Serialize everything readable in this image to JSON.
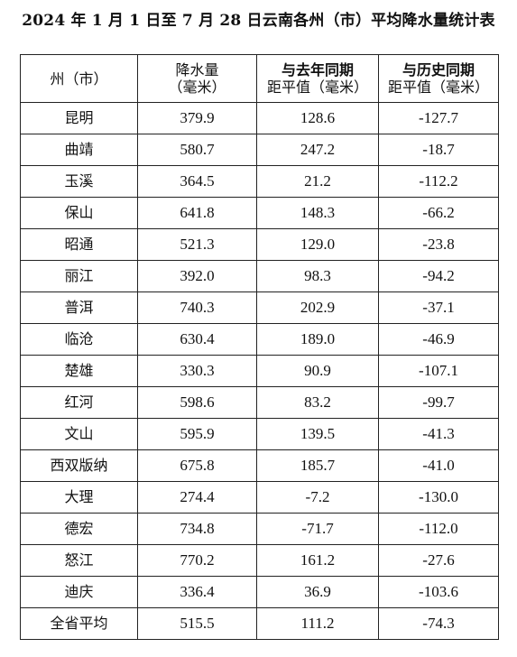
{
  "title": "2024 年 1 月 1 日至 7 月 28 日云南各州（市）平均降水量统计表",
  "header": {
    "col_region": "州（市）",
    "col_rain_1": "降水量",
    "col_rain_2": "（毫米）",
    "col_lastyear_1": "与去年同期",
    "col_lastyear_2": "距平值（毫米）",
    "col_history_1": "与历史同期",
    "col_history_2": "距平值（毫米）"
  },
  "rows": [
    {
      "region": "昆明",
      "rain": "379.9",
      "vs_last_year": "128.6",
      "vs_history": "-127.7"
    },
    {
      "region": "曲靖",
      "rain": "580.7",
      "vs_last_year": "247.2",
      "vs_history": "-18.7"
    },
    {
      "region": "玉溪",
      "rain": "364.5",
      "vs_last_year": "21.2",
      "vs_history": "-112.2"
    },
    {
      "region": "保山",
      "rain": "641.8",
      "vs_last_year": "148.3",
      "vs_history": "-66.2"
    },
    {
      "region": "昭通",
      "rain": "521.3",
      "vs_last_year": "129.0",
      "vs_history": "-23.8"
    },
    {
      "region": "丽江",
      "rain": "392.0",
      "vs_last_year": "98.3",
      "vs_history": "-94.2"
    },
    {
      "region": "普洱",
      "rain": "740.3",
      "vs_last_year": "202.9",
      "vs_history": "-37.1"
    },
    {
      "region": "临沧",
      "rain": "630.4",
      "vs_last_year": "189.0",
      "vs_history": "-46.9"
    },
    {
      "region": "楚雄",
      "rain": "330.3",
      "vs_last_year": "90.9",
      "vs_history": "-107.1"
    },
    {
      "region": "红河",
      "rain": "598.6",
      "vs_last_year": "83.2",
      "vs_history": "-99.7"
    },
    {
      "region": "文山",
      "rain": "595.9",
      "vs_last_year": "139.5",
      "vs_history": "-41.3"
    },
    {
      "region": "西双版纳",
      "rain": "675.8",
      "vs_last_year": "185.7",
      "vs_history": "-41.0"
    },
    {
      "region": "大理",
      "rain": "274.4",
      "vs_last_year": "-7.2",
      "vs_history": "-130.0"
    },
    {
      "region": "德宏",
      "rain": "734.8",
      "vs_last_year": "-71.7",
      "vs_history": "-112.0"
    },
    {
      "region": "怒江",
      "rain": "770.2",
      "vs_last_year": "161.2",
      "vs_history": "-27.6"
    },
    {
      "region": "迪庆",
      "rain": "336.4",
      "vs_last_year": "36.9",
      "vs_history": "-103.6"
    },
    {
      "region": "全省平均",
      "rain": "515.5",
      "vs_last_year": "111.2",
      "vs_history": "-74.3"
    }
  ]
}
